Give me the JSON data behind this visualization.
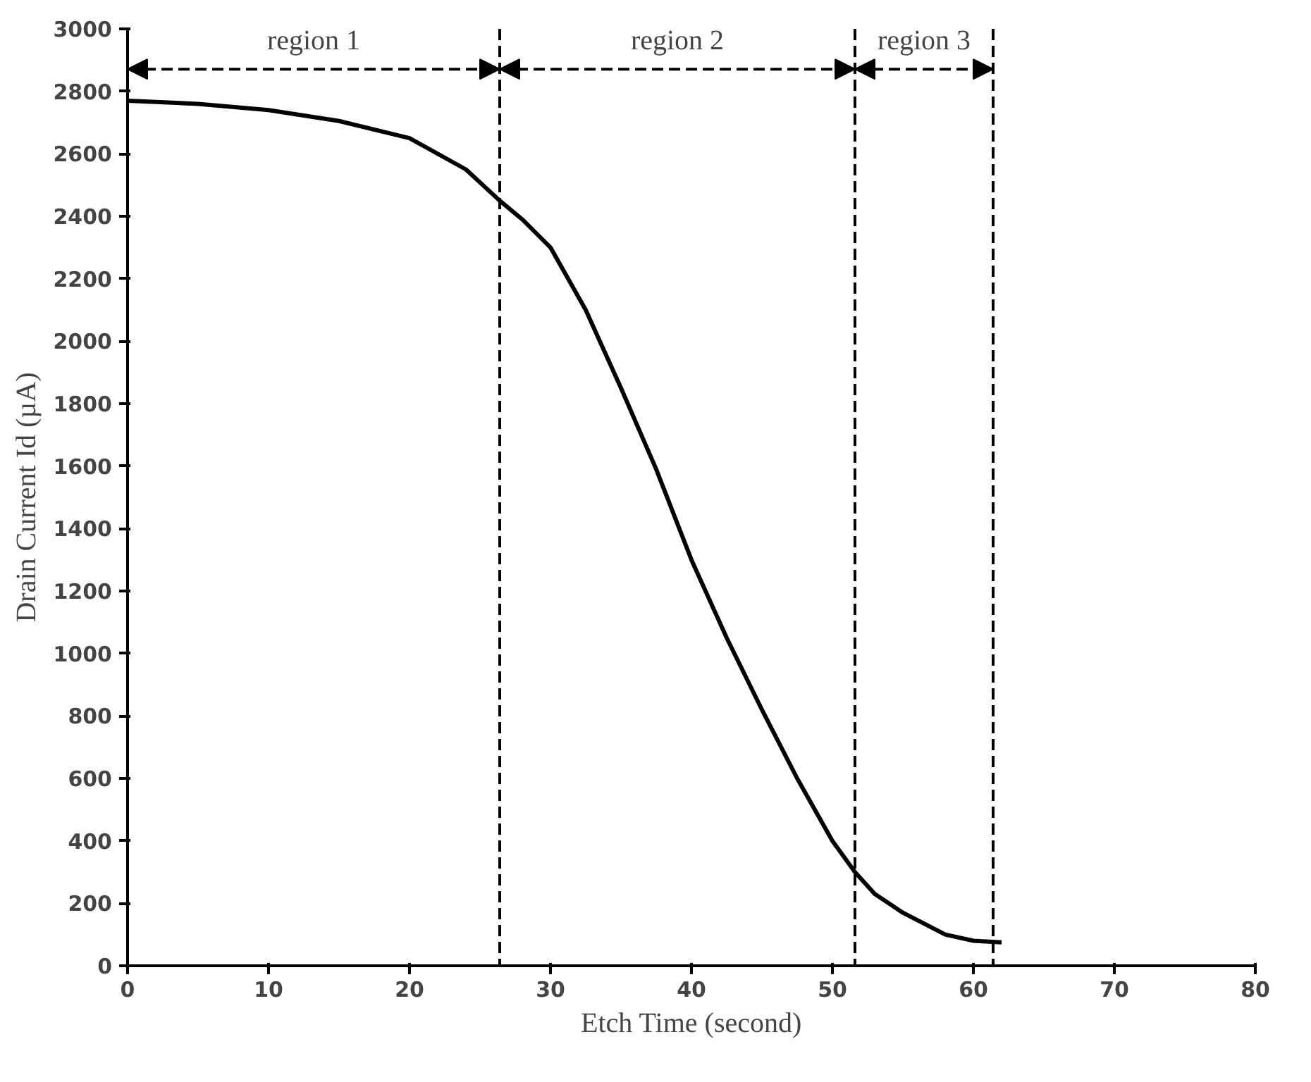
{
  "chart_data": {
    "type": "line",
    "xlabel": "Etch Time (second)",
    "ylabel": "Drain Current Id (µA)",
    "x": [
      0,
      5,
      10,
      15,
      20,
      24,
      26.4,
      28,
      30,
      32.5,
      35,
      37.5,
      40,
      42.5,
      45,
      47.5,
      50,
      51.6,
      53,
      55,
      58,
      60,
      62
    ],
    "series": [
      {
        "color": "#000000",
        "values": [
          2770,
          2760,
          2740,
          2705,
          2650,
          2550,
          2450,
          2390,
          2300,
          2100,
          1850,
          1590,
          1300,
          1050,
          820,
          600,
          400,
          300,
          230,
          170,
          100,
          80,
          75
        ]
      }
    ],
    "xlim": [
      0,
      80
    ],
    "ylim": [
      0,
      3000
    ],
    "xticks": [
      0,
      10,
      20,
      30,
      40,
      50,
      60,
      70,
      80
    ],
    "yticks": [
      0,
      200,
      400,
      600,
      800,
      1000,
      1200,
      1400,
      1600,
      1800,
      2000,
      2200,
      2400,
      2600,
      2800,
      3000
    ],
    "grid": false,
    "marker": "none",
    "line_style": "solid",
    "ref_lines": [
      {
        "axis": "x",
        "value": 26.4,
        "line_style": "dashed",
        "color": "#000000"
      },
      {
        "axis": "x",
        "value": 51.6,
        "line_style": "dashed",
        "color": "#000000"
      },
      {
        "axis": "x",
        "value": 61.4,
        "line_style": "dashed",
        "color": "#000000"
      }
    ],
    "annotations": [
      "region 1",
      "region 2",
      "region 3"
    ]
  }
}
